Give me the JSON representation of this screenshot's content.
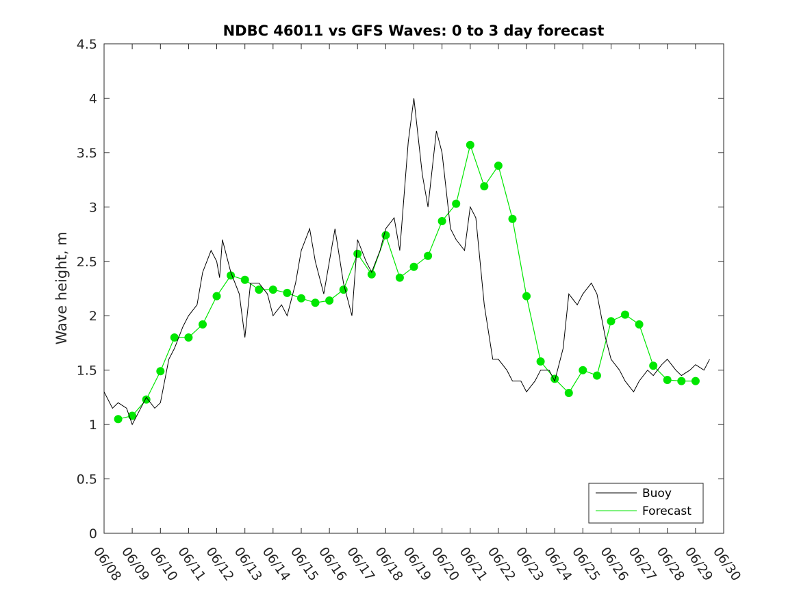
{
  "chart_data": {
    "type": "line",
    "title": "NDBC 46011 vs GFS Waves: 0 to 3 day forecast",
    "xlabel": "",
    "ylabel": "Wave height, m",
    "xlim": [
      "06/08",
      "06/30"
    ],
    "ylim": [
      0,
      4.5
    ],
    "yticks": [
      "0",
      "0.5",
      "1",
      "1.5",
      "2",
      "2.5",
      "3",
      "3.5",
      "4",
      "4.5"
    ],
    "xticks": [
      "06/08",
      "06/09",
      "06/10",
      "06/11",
      "06/12",
      "06/13",
      "06/14",
      "06/15",
      "06/16",
      "06/17",
      "06/18",
      "06/19",
      "06/20",
      "06/21",
      "06/22",
      "06/23",
      "06/24",
      "06/25",
      "06/26",
      "06/27",
      "06/28",
      "06/29",
      "06/30"
    ],
    "grid": false,
    "legend_position": "bottom-right",
    "colors": {
      "buoy": "#000000",
      "forecast": "#00e600",
      "axis": "#262626"
    },
    "series": [
      {
        "name": "Buoy",
        "day_offset": [
          0.0,
          0.3,
          0.5,
          0.8,
          1.0,
          1.2,
          1.5,
          1.8,
          2.0,
          2.3,
          2.5,
          2.8,
          3.0,
          3.3,
          3.5,
          3.8,
          4.0,
          4.1,
          4.2,
          4.5,
          4.8,
          5.0,
          5.2,
          5.5,
          5.8,
          6.0,
          6.3,
          6.5,
          6.8,
          7.0,
          7.3,
          7.5,
          7.8,
          8.0,
          8.2,
          8.5,
          8.8,
          9.0,
          9.3,
          9.5,
          9.8,
          10.0,
          10.3,
          10.5,
          10.8,
          11.0,
          11.3,
          11.5,
          11.8,
          12.0,
          12.3,
          12.5,
          12.8,
          13.0,
          13.2,
          13.5,
          13.8,
          14.0,
          14.3,
          14.5,
          14.8,
          15.0,
          15.3,
          15.5,
          15.8,
          16.0,
          16.3,
          16.5,
          16.8,
          17.0,
          17.3,
          17.5,
          17.8,
          18.0,
          18.3,
          18.5,
          18.8,
          19.0,
          19.3,
          19.5,
          19.8,
          20.0,
          20.3,
          20.5,
          20.8,
          21.0,
          21.3,
          21.5
        ],
        "values": [
          1.3,
          1.15,
          1.2,
          1.15,
          1.0,
          1.1,
          1.25,
          1.15,
          1.2,
          1.6,
          1.7,
          1.9,
          2.0,
          2.1,
          2.4,
          2.6,
          2.5,
          2.35,
          2.7,
          2.4,
          2.2,
          1.8,
          2.3,
          2.3,
          2.2,
          2.0,
          2.1,
          2.0,
          2.3,
          2.6,
          2.8,
          2.5,
          2.2,
          2.5,
          2.8,
          2.3,
          2.0,
          2.7,
          2.5,
          2.4,
          2.6,
          2.8,
          2.9,
          2.6,
          3.6,
          4.0,
          3.3,
          3.0,
          3.7,
          3.5,
          2.8,
          2.7,
          2.6,
          3.0,
          2.9,
          2.1,
          1.6,
          1.6,
          1.5,
          1.4,
          1.4,
          1.3,
          1.4,
          1.5,
          1.5,
          1.4,
          1.7,
          2.2,
          2.1,
          2.2,
          2.3,
          2.2,
          1.8,
          1.6,
          1.5,
          1.4,
          1.3,
          1.4,
          1.5,
          1.45,
          1.55,
          1.6,
          1.5,
          1.45,
          1.5,
          1.55,
          1.5,
          1.6
        ]
      },
      {
        "name": "Forecast",
        "day_offset": [
          0.5,
          1.0,
          1.5,
          2.0,
          2.5,
          3.0,
          3.5,
          4.0,
          4.5,
          5.0,
          5.5,
          6.0,
          6.5,
          7.0,
          7.5,
          8.0,
          8.5,
          9.0,
          9.5,
          10.0,
          10.5,
          11.0,
          11.5,
          12.0,
          12.5,
          13.0,
          13.5,
          14.0,
          14.5,
          15.0,
          15.5,
          16.0,
          16.5,
          17.0,
          17.5,
          18.0,
          18.5,
          19.0,
          19.5,
          20.0,
          20.5,
          21.0
        ],
        "values": [
          1.05,
          1.08,
          1.23,
          1.49,
          1.8,
          1.8,
          1.92,
          2.18,
          2.37,
          2.33,
          2.24,
          2.24,
          2.21,
          2.16,
          2.12,
          2.14,
          2.24,
          2.57,
          2.38,
          2.74,
          2.35,
          2.45,
          2.55,
          2.87,
          3.03,
          3.57,
          3.19,
          3.38,
          2.89,
          2.18,
          1.58,
          1.42,
          1.29,
          1.5,
          1.45,
          1.95,
          2.01,
          1.92,
          1.54,
          1.41,
          1.4,
          1.4
        ]
      }
    ]
  }
}
